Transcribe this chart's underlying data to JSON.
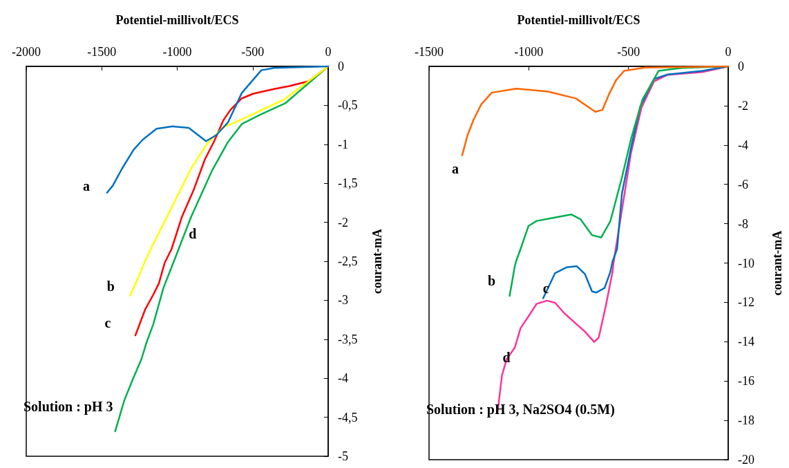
{
  "chart_data": [
    {
      "type": "line",
      "xlabel": "Potentiel-millivolt/ECS",
      "ylabel": "courant-mA",
      "xlim": [
        -2000,
        0
      ],
      "ylim": [
        -5,
        0
      ],
      "xticks": [
        -2000,
        -1500,
        -1000,
        -500,
        0
      ],
      "yticks": [
        0,
        {
          "value": -0.5,
          "label": "-0,5"
        },
        -1,
        {
          "value": -1.5,
          "label": "-1,5"
        },
        -2,
        {
          "value": -2.5,
          "label": "-2,5"
        },
        -3,
        {
          "value": -3.5,
          "label": "-3,5"
        },
        -4,
        {
          "value": -4.5,
          "label": "-4,5"
        },
        -5
      ],
      "series": [
        {
          "name": "a",
          "color": "#0070c0",
          "x": [
            -1465,
            -1427,
            -1365,
            -1289,
            -1228,
            -1137,
            -1030,
            -923,
            -809,
            -740,
            -664,
            -572,
            -443,
            -358,
            0
          ],
          "values": [
            -1.62,
            -1.53,
            -1.31,
            -1.07,
            -0.94,
            -0.8,
            -0.77,
            -0.79,
            -0.96,
            -0.88,
            -0.72,
            -0.34,
            -0.05,
            -0.02,
            0
          ]
        },
        {
          "name": "b",
          "color": "#ffff00",
          "x": [
            -1312,
            -1259,
            -1213,
            -1175,
            -1076,
            -908,
            -801,
            -694,
            -572,
            -419,
            -297,
            -130,
            0
          ],
          "values": [
            -2.94,
            -2.71,
            -2.5,
            -2.34,
            -1.96,
            -1.31,
            -0.99,
            -0.78,
            -0.68,
            -0.54,
            -0.43,
            -0.19,
            0
          ]
        },
        {
          "name": "c",
          "color": "#ff0000",
          "x": [
            -1277,
            -1213,
            -1159,
            -1121,
            -1083,
            -1037,
            -969,
            -892,
            -816,
            -755,
            -694,
            -648,
            -572,
            -496,
            -358,
            -252,
            -130,
            0
          ],
          "values": [
            -3.45,
            -3.12,
            -2.93,
            -2.78,
            -2.52,
            -2.34,
            -1.93,
            -1.59,
            -1.19,
            -0.96,
            -0.69,
            -0.56,
            -0.41,
            -0.35,
            -0.29,
            -0.25,
            -0.19,
            0
          ]
        },
        {
          "name": "d",
          "color": "#00b050",
          "x": [
            -1411,
            -1350,
            -1289,
            -1236,
            -1205,
            -1159,
            -1091,
            -1022,
            -908,
            -770,
            -664,
            -572,
            -450,
            -282,
            0
          ],
          "values": [
            -4.68,
            -4.28,
            -3.99,
            -3.75,
            -3.55,
            -3.31,
            -2.84,
            -2.5,
            -1.93,
            -1.34,
            -0.97,
            -0.74,
            -0.62,
            -0.47,
            0
          ]
        }
      ],
      "annotations": [
        "Solution : pH 3"
      ]
    },
    {
      "type": "line",
      "xlabel": "Potentiel-millivolt/ECS",
      "ylabel": "courant-mA",
      "xlim": [
        -1500,
        0
      ],
      "ylim": [
        -20,
        0
      ],
      "xticks": [
        -1500,
        -1000,
        -500,
        0
      ],
      "yticks": [
        0,
        -2,
        -4,
        -6,
        -8,
        -10,
        -12,
        -14,
        -16,
        -18,
        -20
      ],
      "series": [
        {
          "name": "a",
          "color": "#ff6600",
          "x": [
            -1334,
            -1307,
            -1278,
            -1238,
            -1186,
            -1064,
            -903,
            -764,
            -666,
            -631,
            -597,
            -562,
            -522,
            -418,
            0
          ],
          "values": [
            -4.52,
            -3.5,
            -2.74,
            -1.93,
            -1.34,
            -1.13,
            -1.28,
            -1.63,
            -2.31,
            -2.22,
            -1.4,
            -0.7,
            -0.23,
            -0.06,
            0
          ]
        },
        {
          "name": "b",
          "color": "#00b050",
          "x": [
            -1096,
            -1070,
            -1064,
            -1041,
            -1001,
            -961,
            -880,
            -787,
            -741,
            -683,
            -637,
            -591,
            -533,
            -487,
            -430,
            -349,
            -233,
            0
          ],
          "values": [
            -11.67,
            -10.16,
            -9.92,
            -9.28,
            -8.11,
            -7.86,
            -7.71,
            -7.53,
            -7.77,
            -8.58,
            -8.7,
            -7.88,
            -5.66,
            -3.68,
            -1.69,
            -0.23,
            -0.08,
            0
          ]
        },
        {
          "name": "c",
          "color": "#0070c0",
          "x": [
            -928,
            -868,
            -811,
            -759,
            -718,
            -683,
            -661,
            -620,
            -591,
            -580,
            -557,
            -533,
            -487,
            -441,
            -372,
            -303,
            -129,
            0
          ],
          "values": [
            -11.79,
            -10.51,
            -10.22,
            -10.16,
            -10.57,
            -11.44,
            -11.5,
            -11.27,
            -10.45,
            -9.92,
            -9.28,
            -6.48,
            -4.14,
            -2.04,
            -0.64,
            -0.41,
            -0.23,
            0
          ]
        },
        {
          "name": "d",
          "color": "#ff3399",
          "x": [
            -1157,
            -1134,
            -1111,
            -1070,
            -1041,
            -995,
            -961,
            -909,
            -868,
            -822,
            -764,
            -718,
            -672,
            -649,
            -614,
            -580,
            -574,
            -487,
            -435,
            -372,
            -303,
            -129,
            0
          ],
          "values": [
            -17.63,
            -15.7,
            -14.89,
            -14.3,
            -13.31,
            -12.61,
            -12.08,
            -11.91,
            -12.02,
            -12.55,
            -13.08,
            -13.49,
            -14.01,
            -13.78,
            -12.2,
            -10.45,
            -9.92,
            -4.38,
            -2.1,
            -0.76,
            -0.43,
            -0.29,
            0
          ]
        }
      ],
      "annotations": [
        "Solution : pH 3, Na2SO4 (0.5M)"
      ]
    }
  ]
}
